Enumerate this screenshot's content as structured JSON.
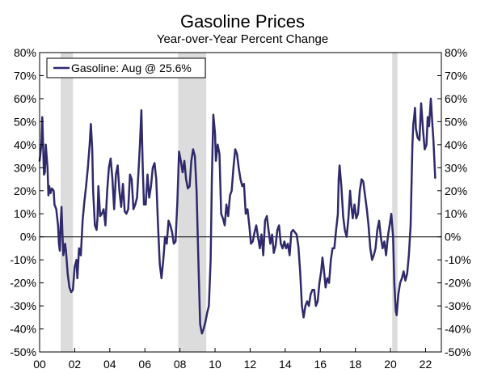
{
  "chart_data": {
    "type": "line",
    "title": "Gasoline Prices",
    "subtitle": "Year-over-Year Percent Change",
    "xlabel": "",
    "ylabel": "",
    "xlim": [
      2000.0,
      2022.9
    ],
    "ylim": [
      -50,
      80
    ],
    "y_ticks": [
      {
        "value": 80,
        "label": "80%"
      },
      {
        "value": 70,
        "label": "70%"
      },
      {
        "value": 60,
        "label": "60%"
      },
      {
        "value": 50,
        "label": "50%"
      },
      {
        "value": 40,
        "label": "40%"
      },
      {
        "value": 30,
        "label": "30%"
      },
      {
        "value": 20,
        "label": "20%"
      },
      {
        "value": 10,
        "label": "10%"
      },
      {
        "value": 0,
        "label": "0%"
      },
      {
        "value": -10,
        "label": "-10%"
      },
      {
        "value": -20,
        "label": "-20%"
      },
      {
        "value": -30,
        "label": "-30%"
      },
      {
        "value": -40,
        "label": "-40%"
      },
      {
        "value": -50,
        "label": "-50%"
      }
    ],
    "x_ticks": [
      {
        "value": 2000,
        "label": "00"
      },
      {
        "value": 2002,
        "label": "02"
      },
      {
        "value": 2004,
        "label": "04"
      },
      {
        "value": 2006,
        "label": "06"
      },
      {
        "value": 2008,
        "label": "08"
      },
      {
        "value": 2010,
        "label": "10"
      },
      {
        "value": 2012,
        "label": "12"
      },
      {
        "value": 2014,
        "label": "14"
      },
      {
        "value": 2016,
        "label": "16"
      },
      {
        "value": 2018,
        "label": "18"
      },
      {
        "value": 2020,
        "label": "20"
      },
      {
        "value": 2022,
        "label": "22"
      }
    ],
    "recessions": [
      [
        2001.2,
        2001.9
      ],
      [
        2007.9,
        2009.5
      ],
      [
        2020.1,
        2020.4
      ]
    ],
    "legend": {
      "label": "Gasoline: Aug @ 25.6%",
      "position": "top-left"
    },
    "colors": {
      "line": "#2e2a6b",
      "recession": "#dcdcdc",
      "zero_line": "#000000"
    },
    "series": [
      {
        "name": "Gasoline",
        "points": [
          [
            2000.0,
            33
          ],
          [
            2000.1,
            40
          ],
          [
            2000.15,
            52
          ],
          [
            2000.25,
            27
          ],
          [
            2000.3,
            28
          ],
          [
            2000.35,
            40
          ],
          [
            2000.45,
            30
          ],
          [
            2000.5,
            18
          ],
          [
            2000.55,
            22
          ],
          [
            2000.62,
            19
          ],
          [
            2000.7,
            21
          ],
          [
            2000.8,
            20
          ],
          [
            2000.85,
            14
          ],
          [
            2000.95,
            12
          ],
          [
            2001.05,
            5
          ],
          [
            2001.1,
            -3
          ],
          [
            2001.15,
            -6
          ],
          [
            2001.2,
            5
          ],
          [
            2001.25,
            13
          ],
          [
            2001.3,
            2
          ],
          [
            2001.35,
            -8
          ],
          [
            2001.45,
            -3
          ],
          [
            2001.5,
            -6
          ],
          [
            2001.6,
            -16
          ],
          [
            2001.7,
            -22
          ],
          [
            2001.8,
            -24
          ],
          [
            2001.9,
            -23
          ],
          [
            2002.0,
            -13
          ],
          [
            2002.1,
            -10
          ],
          [
            2002.15,
            -18
          ],
          [
            2002.25,
            -5
          ],
          [
            2002.35,
            -8
          ],
          [
            2002.45,
            7
          ],
          [
            2002.55,
            15
          ],
          [
            2002.65,
            22
          ],
          [
            2002.75,
            30
          ],
          [
            2002.85,
            40
          ],
          [
            2002.92,
            49
          ],
          [
            2003.0,
            38
          ],
          [
            2003.05,
            20
          ],
          [
            2003.15,
            5
          ],
          [
            2003.25,
            3
          ],
          [
            2003.3,
            8
          ],
          [
            2003.35,
            22
          ],
          [
            2003.45,
            9
          ],
          [
            2003.55,
            10
          ],
          [
            2003.65,
            12
          ],
          [
            2003.75,
            5
          ],
          [
            2003.85,
            20
          ],
          [
            2003.95,
            30
          ],
          [
            2004.05,
            34
          ],
          [
            2004.15,
            25
          ],
          [
            2004.25,
            12
          ],
          [
            2004.35,
            27
          ],
          [
            2004.45,
            31
          ],
          [
            2004.55,
            20
          ],
          [
            2004.65,
            13
          ],
          [
            2004.75,
            23
          ],
          [
            2004.85,
            11
          ],
          [
            2004.95,
            10
          ],
          [
            2005.05,
            12
          ],
          [
            2005.15,
            27
          ],
          [
            2005.25,
            25
          ],
          [
            2005.35,
            12
          ],
          [
            2005.45,
            14
          ],
          [
            2005.55,
            17
          ],
          [
            2005.65,
            30
          ],
          [
            2005.72,
            40
          ],
          [
            2005.8,
            55
          ],
          [
            2005.88,
            30
          ],
          [
            2005.95,
            14
          ],
          [
            2006.05,
            14
          ],
          [
            2006.15,
            27
          ],
          [
            2006.25,
            17
          ],
          [
            2006.35,
            22
          ],
          [
            2006.45,
            30
          ],
          [
            2006.55,
            32
          ],
          [
            2006.65,
            25
          ],
          [
            2006.75,
            5
          ],
          [
            2006.85,
            -12
          ],
          [
            2006.95,
            -18
          ],
          [
            2007.05,
            -10
          ],
          [
            2007.15,
            0
          ],
          [
            2007.25,
            -3
          ],
          [
            2007.35,
            7
          ],
          [
            2007.45,
            5
          ],
          [
            2007.55,
            2
          ],
          [
            2007.65,
            -3
          ],
          [
            2007.75,
            -2
          ],
          [
            2007.85,
            15
          ],
          [
            2007.95,
            37
          ],
          [
            2008.05,
            33
          ],
          [
            2008.15,
            28
          ],
          [
            2008.25,
            33
          ],
          [
            2008.35,
            25
          ],
          [
            2008.45,
            21
          ],
          [
            2008.55,
            22
          ],
          [
            2008.65,
            33
          ],
          [
            2008.75,
            38
          ],
          [
            2008.85,
            35
          ],
          [
            2008.95,
            20
          ],
          [
            2009.05,
            -10
          ],
          [
            2009.15,
            -38
          ],
          [
            2009.25,
            -42
          ],
          [
            2009.35,
            -40
          ],
          [
            2009.45,
            -37
          ],
          [
            2009.55,
            -33
          ],
          [
            2009.65,
            -30
          ],
          [
            2009.75,
            -10
          ],
          [
            2009.82,
            25
          ],
          [
            2009.9,
            53
          ],
          [
            2010.0,
            45
          ],
          [
            2010.05,
            33
          ],
          [
            2010.15,
            40
          ],
          [
            2010.25,
            36
          ],
          [
            2010.35,
            10
          ],
          [
            2010.45,
            8
          ],
          [
            2010.55,
            5
          ],
          [
            2010.65,
            14
          ],
          [
            2010.75,
            9
          ],
          [
            2010.85,
            18
          ],
          [
            2010.95,
            20
          ],
          [
            2011.05,
            30
          ],
          [
            2011.15,
            38
          ],
          [
            2011.25,
            36
          ],
          [
            2011.35,
            30
          ],
          [
            2011.45,
            25
          ],
          [
            2011.55,
            22
          ],
          [
            2011.65,
            23
          ],
          [
            2011.75,
            10
          ],
          [
            2011.85,
            12
          ],
          [
            2011.95,
            5
          ],
          [
            2012.05,
            -3
          ],
          [
            2012.15,
            -2
          ],
          [
            2012.25,
            2
          ],
          [
            2012.35,
            5
          ],
          [
            2012.45,
            0
          ],
          [
            2012.55,
            -5
          ],
          [
            2012.65,
            1
          ],
          [
            2012.75,
            -8
          ],
          [
            2012.85,
            7
          ],
          [
            2012.95,
            9
          ],
          [
            2013.05,
            3
          ],
          [
            2013.15,
            -3
          ],
          [
            2013.25,
            1
          ],
          [
            2013.35,
            -7
          ],
          [
            2013.45,
            -4
          ],
          [
            2013.55,
            3
          ],
          [
            2013.65,
            5
          ],
          [
            2013.75,
            -3
          ],
          [
            2013.85,
            -5
          ],
          [
            2013.95,
            -2
          ],
          [
            2014.05,
            -5
          ],
          [
            2014.15,
            -3
          ],
          [
            2014.25,
            -8
          ],
          [
            2014.35,
            2
          ],
          [
            2014.45,
            3
          ],
          [
            2014.55,
            2
          ],
          [
            2014.65,
            1
          ],
          [
            2014.75,
            -4
          ],
          [
            2014.85,
            -15
          ],
          [
            2014.95,
            -30
          ],
          [
            2015.05,
            -35
          ],
          [
            2015.15,
            -30
          ],
          [
            2015.25,
            -28
          ],
          [
            2015.35,
            -30
          ],
          [
            2015.45,
            -25
          ],
          [
            2015.55,
            -23
          ],
          [
            2015.65,
            -23
          ],
          [
            2015.75,
            -30
          ],
          [
            2015.85,
            -28
          ],
          [
            2015.95,
            -20
          ],
          [
            2016.05,
            -15
          ],
          [
            2016.12,
            -9
          ],
          [
            2016.2,
            -14
          ],
          [
            2016.3,
            -22
          ],
          [
            2016.4,
            -18
          ],
          [
            2016.5,
            -20
          ],
          [
            2016.6,
            -10
          ],
          [
            2016.7,
            -5
          ],
          [
            2016.8,
            -5
          ],
          [
            2016.9,
            3
          ],
          [
            2017.0,
            10
          ],
          [
            2017.05,
            25
          ],
          [
            2017.1,
            31
          ],
          [
            2017.2,
            22
          ],
          [
            2017.3,
            9
          ],
          [
            2017.4,
            3
          ],
          [
            2017.5,
            0
          ],
          [
            2017.6,
            8
          ],
          [
            2017.7,
            20
          ],
          [
            2017.75,
            15
          ],
          [
            2017.85,
            8
          ],
          [
            2017.95,
            14
          ],
          [
            2018.05,
            8
          ],
          [
            2018.15,
            10
          ],
          [
            2018.25,
            20
          ],
          [
            2018.35,
            25
          ],
          [
            2018.45,
            24
          ],
          [
            2018.55,
            18
          ],
          [
            2018.65,
            12
          ],
          [
            2018.75,
            5
          ],
          [
            2018.85,
            -5
          ],
          [
            2018.95,
            -10
          ],
          [
            2019.05,
            -8
          ],
          [
            2019.15,
            -5
          ],
          [
            2019.25,
            3
          ],
          [
            2019.35,
            7
          ],
          [
            2019.45,
            0
          ],
          [
            2019.55,
            -5
          ],
          [
            2019.65,
            -2
          ],
          [
            2019.75,
            -8
          ],
          [
            2019.85,
            0
          ],
          [
            2019.95,
            5
          ],
          [
            2020.05,
            10
          ],
          [
            2020.15,
            0
          ],
          [
            2020.22,
            -20
          ],
          [
            2020.3,
            -32
          ],
          [
            2020.35,
            -34
          ],
          [
            2020.45,
            -25
          ],
          [
            2020.55,
            -20
          ],
          [
            2020.65,
            -18
          ],
          [
            2020.75,
            -15
          ],
          [
            2020.85,
            -19
          ],
          [
            2020.95,
            -16
          ],
          [
            2021.05,
            -8
          ],
          [
            2021.15,
            5
          ],
          [
            2021.25,
            40
          ],
          [
            2021.3,
            49
          ],
          [
            2021.35,
            52
          ],
          [
            2021.4,
            56
          ],
          [
            2021.45,
            47
          ],
          [
            2021.55,
            43
          ],
          [
            2021.65,
            42
          ],
          [
            2021.75,
            58
          ],
          [
            2021.85,
            47
          ],
          [
            2021.95,
            38
          ],
          [
            2022.05,
            40
          ],
          [
            2022.12,
            52
          ],
          [
            2022.2,
            48
          ],
          [
            2022.3,
            60
          ],
          [
            2022.38,
            50
          ],
          [
            2022.45,
            42
          ],
          [
            2022.55,
            25.6
          ]
        ]
      }
    ]
  }
}
